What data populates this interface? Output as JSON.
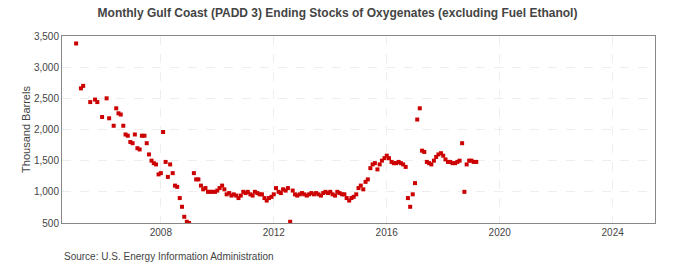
{
  "chart_data": {
    "type": "scatter",
    "title": "Monthly Gulf Coast (PADD 3) Ending Stocks of Oxygenates (excluding Fuel Ethanol)",
    "ylabel": "Thousand Barrels",
    "annotations": [
      "Source: U.S. Energy Information Administration"
    ],
    "color": "#cc0000",
    "marker": "square",
    "grid": true,
    "xlim": [
      2004.5,
      2025.5
    ],
    "xticks": [
      2008,
      2012,
      2016,
      2020,
      2024
    ],
    "ylim": [
      500,
      3500
    ],
    "yticks": [
      500,
      {
        "value": 1000,
        "label": "1,000"
      },
      {
        "value": 1500,
        "label": "1,500"
      },
      {
        "value": 2000,
        "label": "2,000"
      },
      {
        "value": 2500,
        "label": "2,500"
      },
      {
        "value": 3000,
        "label": "3,000"
      },
      {
        "value": 3500,
        "label": "3,500"
      }
    ],
    "x": [
      2005.0,
      2005.17,
      2005.25,
      2005.5,
      2005.67,
      2005.75,
      2005.92,
      2006.08,
      2006.17,
      2006.33,
      2006.42,
      2006.5,
      2006.58,
      2006.67,
      2006.75,
      2006.83,
      2006.92,
      2007.0,
      2007.08,
      2007.17,
      2007.25,
      2007.33,
      2007.42,
      2007.5,
      2007.58,
      2007.67,
      2007.75,
      2007.83,
      2007.92,
      2008.0,
      2008.08,
      2008.17,
      2008.25,
      2008.33,
      2008.42,
      2008.5,
      2008.58,
      2008.67,
      2008.75,
      2008.83,
      2008.92,
      2009.0,
      2009.17,
      2009.25,
      2009.33,
      2009.42,
      2009.5,
      2009.58,
      2009.67,
      2009.75,
      2009.83,
      2009.92,
      2010.0,
      2010.08,
      2010.17,
      2010.25,
      2010.33,
      2010.42,
      2010.5,
      2010.58,
      2010.67,
      2010.75,
      2010.83,
      2010.92,
      2011.0,
      2011.08,
      2011.17,
      2011.25,
      2011.33,
      2011.42,
      2011.5,
      2011.58,
      2011.67,
      2011.75,
      2011.83,
      2011.92,
      2012.0,
      2012.08,
      2012.17,
      2012.25,
      2012.33,
      2012.42,
      2012.5,
      2012.58,
      2012.67,
      2012.75,
      2012.83,
      2012.92,
      2013.0,
      2013.08,
      2013.17,
      2013.25,
      2013.33,
      2013.42,
      2013.5,
      2013.58,
      2013.67,
      2013.75,
      2013.83,
      2013.92,
      2014.0,
      2014.08,
      2014.17,
      2014.25,
      2014.33,
      2014.42,
      2014.5,
      2014.58,
      2014.67,
      2014.75,
      2014.83,
      2014.92,
      2015.0,
      2015.08,
      2015.17,
      2015.25,
      2015.33,
      2015.42,
      2015.5,
      2015.58,
      2015.67,
      2015.75,
      2015.83,
      2015.92,
      2016.0,
      2016.08,
      2016.17,
      2016.25,
      2016.33,
      2016.42,
      2016.5,
      2016.58,
      2016.67,
      2016.75,
      2016.83,
      2016.92,
      2017.0,
      2017.08,
      2017.17,
      2017.25,
      2017.33,
      2017.42,
      2017.5,
      2017.58,
      2017.67,
      2017.75,
      2017.83,
      2017.92,
      2018.0,
      2018.08,
      2018.17,
      2018.25,
      2018.33,
      2018.42,
      2018.5,
      2018.58,
      2018.67,
      2018.75,
      2018.83,
      2018.92,
      2019.0,
      2019.08,
      2019.17
    ],
    "values": [
      3380,
      2660,
      2700,
      2440,
      2480,
      2440,
      2200,
      2500,
      2180,
      2060,
      2340,
      2260,
      2240,
      2060,
      1920,
      1900,
      1800,
      1780,
      1920,
      1700,
      1680,
      1900,
      1900,
      1780,
      1600,
      1500,
      1460,
      1440,
      1280,
      1300,
      1960,
      1480,
      1240,
      1440,
      1300,
      1100,
      1080,
      900,
      760,
      600,
      520,
      500,
      1300,
      1200,
      1200,
      1100,
      1040,
      1060,
      1000,
      1000,
      1000,
      1000,
      1020,
      1060,
      1100,
      1040,
      960,
      980,
      940,
      960,
      940,
      900,
      940,
      1000,
      980,
      1000,
      960,
      940,
      1000,
      980,
      960,
      960,
      900,
      860,
      900,
      920,
      960,
      1060,
      1000,
      980,
      1040,
      1020,
      1060,
      520,
      1020,
      960,
      940,
      960,
      980,
      960,
      940,
      960,
      980,
      960,
      980,
      960,
      940,
      980,
      1000,
      980,
      1000,
      960,
      940,
      1000,
      980,
      960,
      960,
      900,
      860,
      900,
      920,
      960,
      1060,
      1100,
      1040,
      1160,
      1200,
      1380,
      1440,
      1460,
      1360,
      1440,
      1500,
      1540,
      1580,
      1540,
      1480,
      1460,
      1460,
      1480,
      1460,
      1440,
      1400,
      900,
      760,
      960,
      1140,
      2160,
      2340,
      1660,
      1640,
      1480,
      1460,
      1440,
      1500,
      1560,
      1600,
      1620,
      1580,
      1520,
      1480,
      1480,
      1460,
      1460,
      1480,
      1500,
      1780,
      1000,
      1440,
      1500,
      1500,
      1480,
      1480
    ]
  }
}
